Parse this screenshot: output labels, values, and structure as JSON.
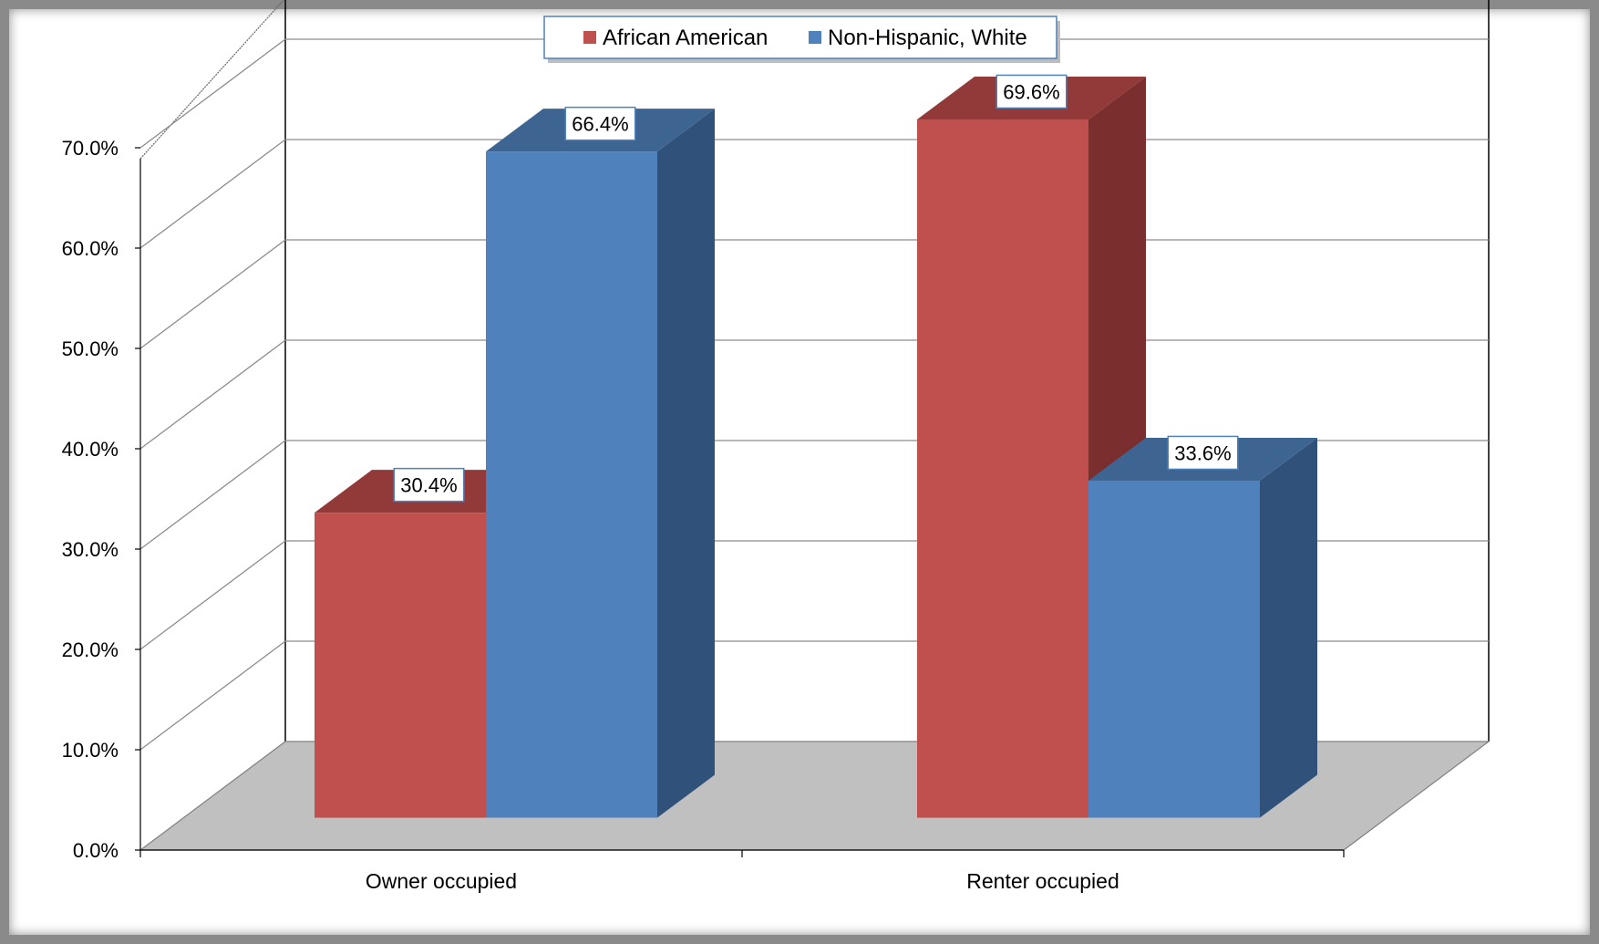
{
  "chart_data": {
    "type": "bar",
    "title": "",
    "xlabel": "",
    "ylabel": "",
    "categories": [
      "Owner occupied",
      "Renter occupied"
    ],
    "series": [
      {
        "name": "African American",
        "values": [
          30.4,
          69.6
        ],
        "labels": [
          "30.4%",
          "69.6%"
        ],
        "color": "#C0504D",
        "side_color": "#7A2E2E",
        "top_color": "#923A39"
      },
      {
        "name": "Non-Hispanic, White",
        "values": [
          66.4,
          33.6
        ],
        "labels": [
          "66.4%",
          "33.6%"
        ],
        "color": "#4F81BD",
        "side_color": "#30527A",
        "top_color": "#3E6591"
      }
    ],
    "ylim": [
      0,
      70
    ],
    "yticks": [
      0,
      10,
      20,
      30,
      40,
      50,
      60,
      70
    ],
    "ytick_labels": [
      "0.0%",
      "10.0%",
      "20.0%",
      "30.0%",
      "40.0%",
      "50.0%",
      "60.0%",
      "70.0%"
    ],
    "grid": true,
    "legend_position": "top-center",
    "style": "3d-clustered-column"
  }
}
